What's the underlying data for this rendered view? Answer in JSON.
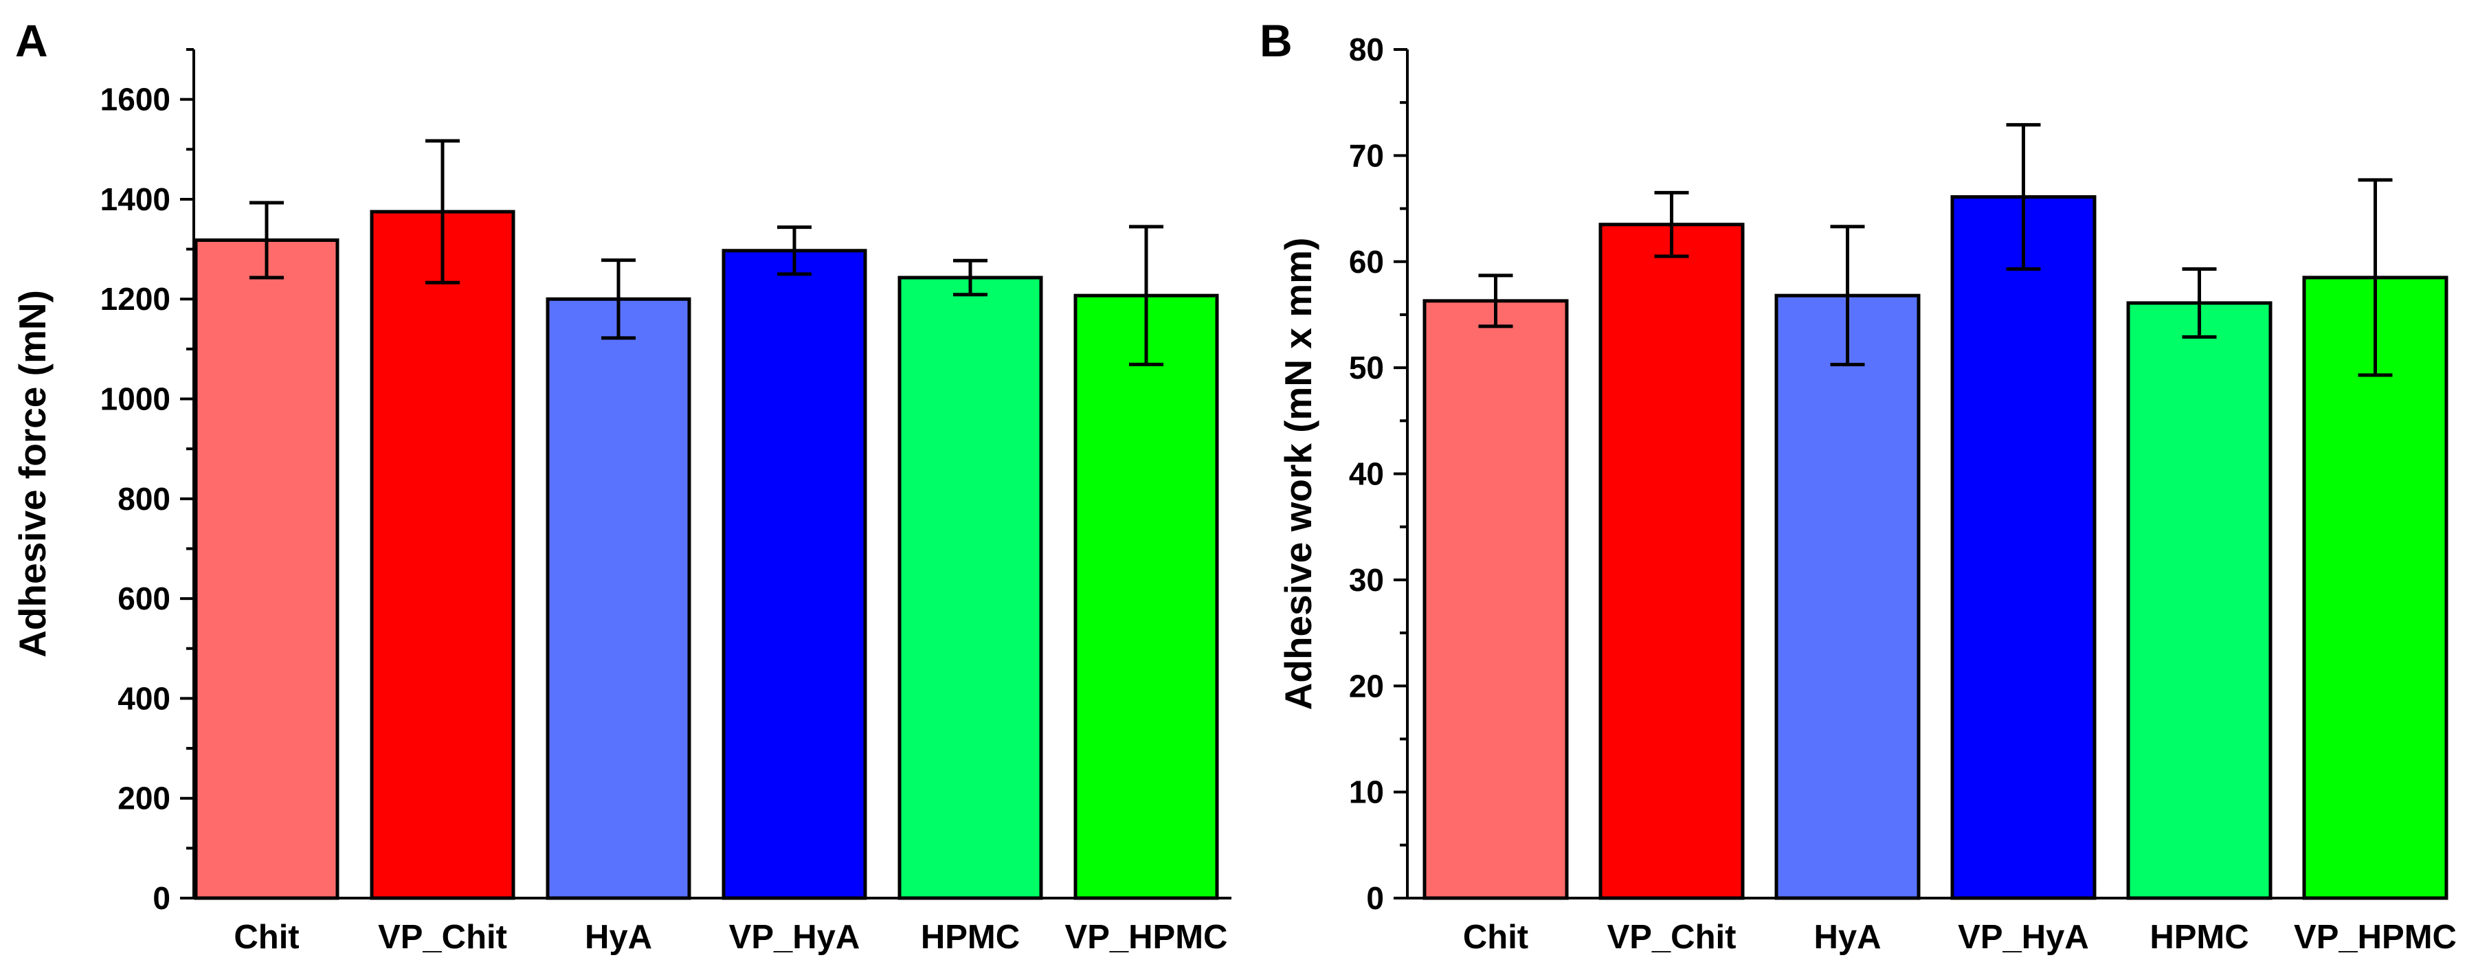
{
  "chart_data": [
    {
      "panel_label": "A",
      "type": "bar",
      "title": "",
      "xlabel": "",
      "ylabel": "Adhesive force (mN)",
      "ylim": [
        0,
        1700
      ],
      "yticks": [
        0,
        200,
        400,
        600,
        800,
        1000,
        1200,
        1400,
        1600
      ],
      "ytick_labels": [
        "0",
        "200",
        "400",
        "600",
        "800",
        "1000",
        "1200",
        "1400",
        "1600"
      ],
      "categories": [
        "Chit",
        "VP_Chit",
        "HyA",
        "VP_HyA",
        "HPMC",
        "VP_HPMC"
      ],
      "values": [
        1318,
        1375,
        1200,
        1297,
        1243,
        1207
      ],
      "errors": [
        75,
        142,
        78,
        47,
        34,
        138
      ],
      "colors": [
        "#ff6b6b",
        "#ff0000",
        "#5a73ff",
        "#0000ff",
        "#00ff66",
        "#00ff00"
      ]
    },
    {
      "panel_label": "B",
      "type": "bar",
      "title": "",
      "xlabel": "",
      "ylabel": "Adhesive work (mN x mm)",
      "ylim": [
        0,
        80
      ],
      "yticks": [
        0,
        10,
        20,
        30,
        40,
        50,
        60,
        70,
        80
      ],
      "ytick_labels": [
        "0",
        "10",
        "20",
        "30",
        "40",
        "50",
        "60",
        "70",
        "80"
      ],
      "categories": [
        "Chit",
        "VP_Chit",
        "HyA",
        "VP_HyA",
        "HPMC",
        "VP_HPMC"
      ],
      "values": [
        56.3,
        63.5,
        56.8,
        66.1,
        56.1,
        58.5
      ],
      "errors": [
        2.4,
        3.0,
        6.5,
        6.8,
        3.2,
        9.2
      ],
      "colors": [
        "#ff6b6b",
        "#ff0000",
        "#5a73ff",
        "#0000ff",
        "#00ff66",
        "#00ff00"
      ]
    }
  ]
}
